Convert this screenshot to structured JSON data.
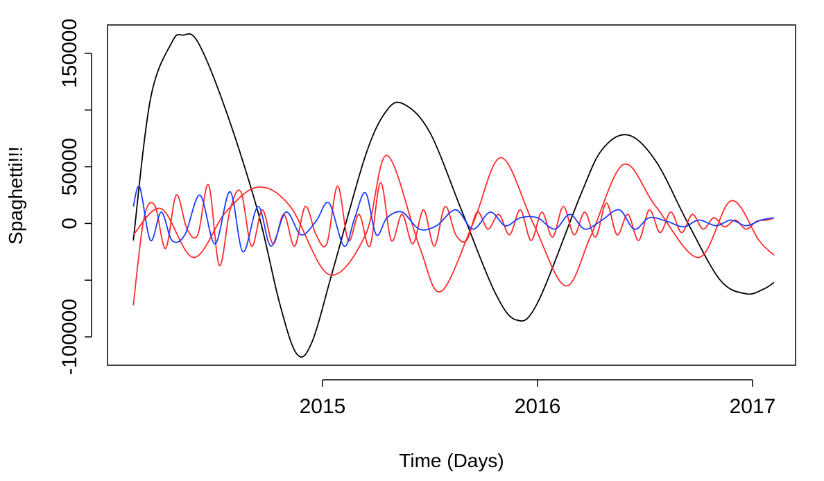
{
  "chart_data": {
    "type": "line",
    "title": "",
    "xlabel": "Time (Days)",
    "ylabel": "Spaghetti!!!",
    "xlim": [
      2014.0,
      2017.2
    ],
    "ylim": [
      -125000,
      175000
    ],
    "x_ticks": [
      {
        "value": 2015,
        "label": "2015"
      },
      {
        "value": 2016,
        "label": "2016"
      },
      {
        "value": 2017,
        "label": "2017"
      }
    ],
    "y_ticks": [
      {
        "value": -100000,
        "label": "-100000"
      },
      {
        "value": -50000,
        "label": ""
      },
      {
        "value": 0,
        "label": "0"
      },
      {
        "value": 50000,
        "label": "50000"
      },
      {
        "value": 100000,
        "label": ""
      },
      {
        "value": 150000,
        "label": "150000"
      }
    ],
    "grid": false,
    "legend": "none",
    "series": [
      {
        "color": "#000000",
        "x": [
          2014.12,
          2014.2,
          2014.3,
          2014.35,
          2014.42,
          2014.55,
          2014.7,
          2014.8,
          2014.88,
          2014.95,
          2015.05,
          2015.2,
          2015.3,
          2015.38,
          2015.5,
          2015.65,
          2015.8,
          2015.9,
          2016.0,
          2016.2,
          2016.3,
          2016.42,
          2016.55,
          2016.7,
          2016.85,
          2016.97,
          2017.05,
          2017.1
        ],
        "y": [
          -15000,
          110000,
          160000,
          166000,
          160000,
          100000,
          10000,
          -70000,
          -115000,
          -105000,
          -40000,
          60000,
          100000,
          105000,
          80000,
          10000,
          -60000,
          -85000,
          -70000,
          25000,
          65000,
          78000,
          55000,
          0,
          -50000,
          -62000,
          -58000,
          -52000
        ]
      },
      {
        "color": "#ff2a2a",
        "x": [
          2014.12,
          2014.25,
          2014.4,
          2014.55,
          2014.7,
          2014.85,
          2015.03,
          2015.2,
          2015.3,
          2015.45,
          2015.55,
          2015.7,
          2015.83,
          2015.98,
          2016.13,
          2016.25,
          2016.4,
          2016.55,
          2016.75,
          2016.9,
          2017.03,
          2017.1
        ],
        "y": [
          -10000,
          13000,
          -30000,
          10000,
          32000,
          15000,
          -45000,
          -10000,
          60000,
          -20000,
          -60000,
          0,
          58000,
          0,
          -55000,
          -10000,
          52000,
          15000,
          -30000,
          20000,
          -15000,
          -28000
        ]
      },
      {
        "color": "#ff2a2a",
        "x": [
          2014.12,
          2014.17,
          2014.22,
          2014.27,
          2014.32,
          2014.37,
          2014.42,
          2014.47,
          2014.52,
          2014.57,
          2014.62,
          2014.67,
          2014.72,
          2014.77,
          2014.82,
          2014.87,
          2014.92,
          2014.97,
          2015.02,
          2015.07,
          2015.12,
          2015.17,
          2015.22,
          2015.27,
          2015.32,
          2015.37,
          2015.42,
          2015.47,
          2015.52,
          2015.57,
          2015.62,
          2015.67,
          2015.72,
          2015.77,
          2015.82,
          2015.87,
          2015.92,
          2015.97,
          2016.02,
          2016.07,
          2016.12,
          2016.17,
          2016.22,
          2016.27,
          2016.32,
          2016.37,
          2016.42,
          2016.47,
          2016.52,
          2016.57,
          2016.62,
          2016.67,
          2016.72,
          2016.77,
          2016.82,
          2016.87,
          2016.92,
          2016.97,
          2017.02,
          2017.07,
          2017.1
        ],
        "y": [
          -72000,
          5000,
          16000,
          -22000,
          25000,
          -5000,
          -10000,
          34000,
          -37000,
          12000,
          28000,
          -20000,
          12000,
          -18000,
          8000,
          -20000,
          15000,
          -10000,
          -18000,
          33000,
          -15000,
          8000,
          -20000,
          36000,
          -15000,
          8000,
          -18000,
          12000,
          -20000,
          15000,
          -10000,
          -15000,
          10000,
          -5000,
          8000,
          -10000,
          12000,
          -15000,
          10000,
          -12000,
          15000,
          -10000,
          10000,
          -12000,
          18000,
          -10000,
          8000,
          -15000,
          12000,
          -8000,
          10000,
          -8000,
          8000,
          -5000,
          5000,
          -3000,
          3000,
          -5000,
          2000,
          3000,
          5000
        ]
      },
      {
        "color": "#1a3aff",
        "x": [
          2014.12,
          2014.15,
          2014.2,
          2014.25,
          2014.3,
          2014.36,
          2014.43,
          2014.5,
          2014.57,
          2014.63,
          2014.7,
          2014.76,
          2014.83,
          2014.9,
          2014.97,
          2015.03,
          2015.1,
          2015.15,
          2015.2,
          2015.25,
          2015.3,
          2015.37,
          2015.45,
          2015.53,
          2015.62,
          2015.7,
          2015.78,
          2015.85,
          2015.92,
          2016.0,
          2016.08,
          2016.15,
          2016.22,
          2016.3,
          2016.38,
          2016.45,
          2016.52,
          2016.6,
          2016.68,
          2016.75,
          2016.83,
          2016.9,
          2016.97,
          2017.04,
          2017.1
        ],
        "y": [
          15000,
          32000,
          -15000,
          10000,
          -15000,
          -10000,
          25000,
          -18000,
          28000,
          -25000,
          15000,
          -20000,
          10000,
          -10000,
          2000,
          18000,
          -20000,
          5000,
          27000,
          -10000,
          5000,
          10000,
          -5000,
          -2000,
          12000,
          -5000,
          10000,
          -2000,
          5000,
          5000,
          -5000,
          8000,
          -5000,
          3000,
          12000,
          -5000,
          5000,
          2000,
          -3000,
          3000,
          -2000,
          3000,
          -2000,
          3000,
          5000
        ]
      }
    ]
  }
}
